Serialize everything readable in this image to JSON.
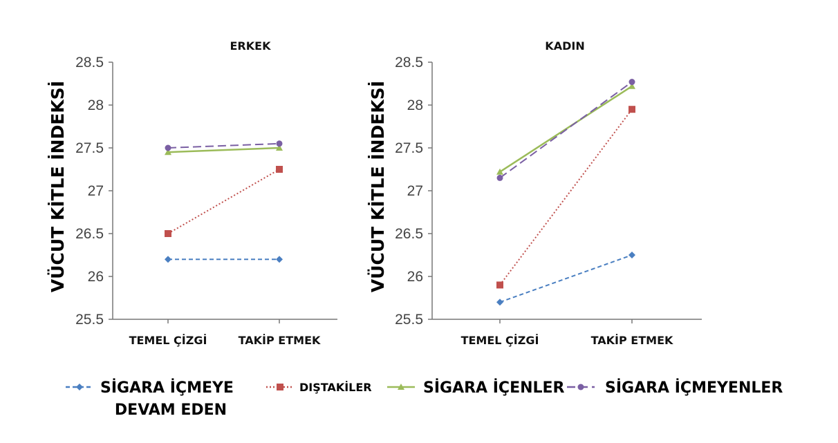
{
  "chart_data": [
    {
      "type": "line",
      "title": "ERKEK",
      "ylabel": "VÜCUT KİTLE İNDEKSİ",
      "xlabel": "",
      "categories": [
        "TEMEL ÇİZGİ",
        "TAKİP ETMEK"
      ],
      "ylim": [
        25.5,
        28.5
      ],
      "yticks": [
        "25.5",
        "26",
        "26.5",
        "27",
        "27.5",
        "28",
        "28.5"
      ],
      "series": [
        {
          "name": "SİGARA İÇMEYE DEVAM EDEN",
          "values": [
            26.2,
            26.2
          ]
        },
        {
          "name": "DIŞTAKİLER",
          "values": [
            26.5,
            27.25
          ]
        },
        {
          "name": "SİGARA İÇENLER",
          "values": [
            27.45,
            27.5
          ]
        },
        {
          "name": "SİGARA İÇMEYENLER",
          "values": [
            27.5,
            27.55
          ]
        }
      ]
    },
    {
      "type": "line",
      "title": "KADIN",
      "ylabel": "VÜCUT KİTLE İNDEKSİ",
      "xlabel": "",
      "categories": [
        "TEMEL ÇİZGİ",
        "TAKİP ETMEK"
      ],
      "ylim": [
        25.5,
        28.5
      ],
      "yticks": [
        "25.5",
        "26",
        "26.5",
        "27",
        "27.5",
        "28",
        "28.5"
      ],
      "series": [
        {
          "name": "SİGARA İÇMEYE DEVAM EDEN",
          "values": [
            25.7,
            26.25
          ]
        },
        {
          "name": "DIŞTAKİLER",
          "values": [
            25.9,
            27.95
          ]
        },
        {
          "name": "SİGARA İÇENLER",
          "values": [
            27.22,
            28.22
          ]
        },
        {
          "name": "SİGARA İÇMEYENLER",
          "values": [
            27.15,
            28.27
          ]
        }
      ]
    }
  ],
  "legend": {
    "placement": "bottom",
    "items": [
      {
        "line1": "SİGARA İÇMEYE",
        "line2": "DEVAM EDEN",
        "color": "#4a7fc1",
        "marker": "diamond",
        "dash": "dashed"
      },
      {
        "line1": "DIŞTAKİLER",
        "line2": "",
        "color": "#c0504d",
        "marker": "square",
        "dash": "dotted"
      },
      {
        "line1": "SİGARA İÇENLER",
        "line2": "",
        "color": "#9bbb59",
        "marker": "triangle",
        "dash": "solid"
      },
      {
        "line1": "SİGARA İÇMEYENLER",
        "line2": "",
        "color": "#7a5fa3",
        "marker": "circle",
        "dash": "longdash"
      }
    ]
  }
}
